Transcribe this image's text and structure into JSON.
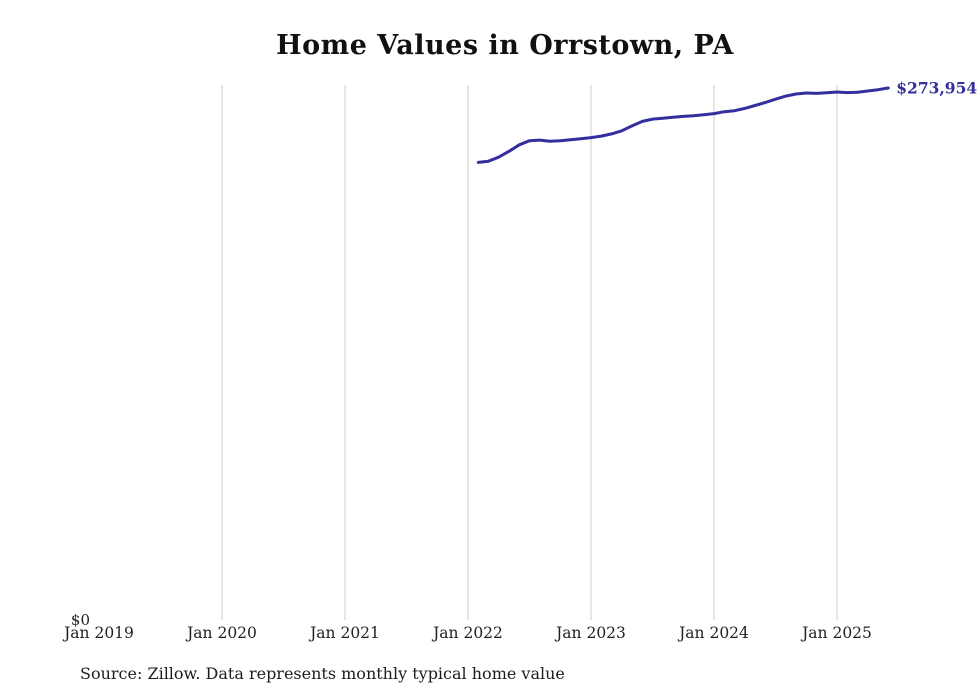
{
  "title": "Home Values in Orrstown, PA",
  "source_note": "Source: Zillow. Data represents monthly typical home value",
  "y_zero_label": "$0",
  "end_value_label": "$273,954",
  "colors": {
    "line": "#332f9e",
    "grid": "#cccccc",
    "title": "#111111",
    "tick_text": "#222222"
  },
  "chart_data": {
    "type": "line",
    "title": "Home Values in Orrstown, PA",
    "series_name": "Monthly typical home value",
    "xlabel": "",
    "ylabel": "",
    "ylim": [
      0,
      280000
    ],
    "grid": "vertical-yearly",
    "legend": "none",
    "xticks": [
      "Jan 2019",
      "Jan 2020",
      "Jan 2021",
      "Jan 2022",
      "Jan 2023",
      "Jan 2024",
      "Jan 2025"
    ],
    "x": [
      "2022-02",
      "2022-03",
      "2022-04",
      "2022-05",
      "2022-06",
      "2022-07",
      "2022-08",
      "2022-09",
      "2022-10",
      "2022-11",
      "2022-12",
      "2023-01",
      "2023-02",
      "2023-03",
      "2023-04",
      "2023-05",
      "2023-06",
      "2023-07",
      "2023-08",
      "2023-09",
      "2023-10",
      "2023-11",
      "2023-12",
      "2024-01",
      "2024-02",
      "2024-03",
      "2024-04",
      "2024-05",
      "2024-06",
      "2024-07",
      "2024-08",
      "2024-09",
      "2024-10",
      "2024-11",
      "2024-12",
      "2025-01",
      "2025-02",
      "2025-03",
      "2025-04",
      "2025-05",
      "2025-06"
    ],
    "values": [
      235800,
      236400,
      238500,
      241500,
      244800,
      246900,
      247200,
      246600,
      246900,
      247400,
      247900,
      248500,
      249300,
      250400,
      252000,
      254500,
      256800,
      258000,
      258400,
      258900,
      259400,
      259700,
      260200,
      260800,
      261800,
      262300,
      263500,
      265000,
      266500,
      268200,
      269800,
      270900,
      271400,
      271200,
      271500,
      271900,
      271600,
      271800,
      272400,
      273100,
      273954
    ],
    "end_point_label": "$273,954"
  }
}
